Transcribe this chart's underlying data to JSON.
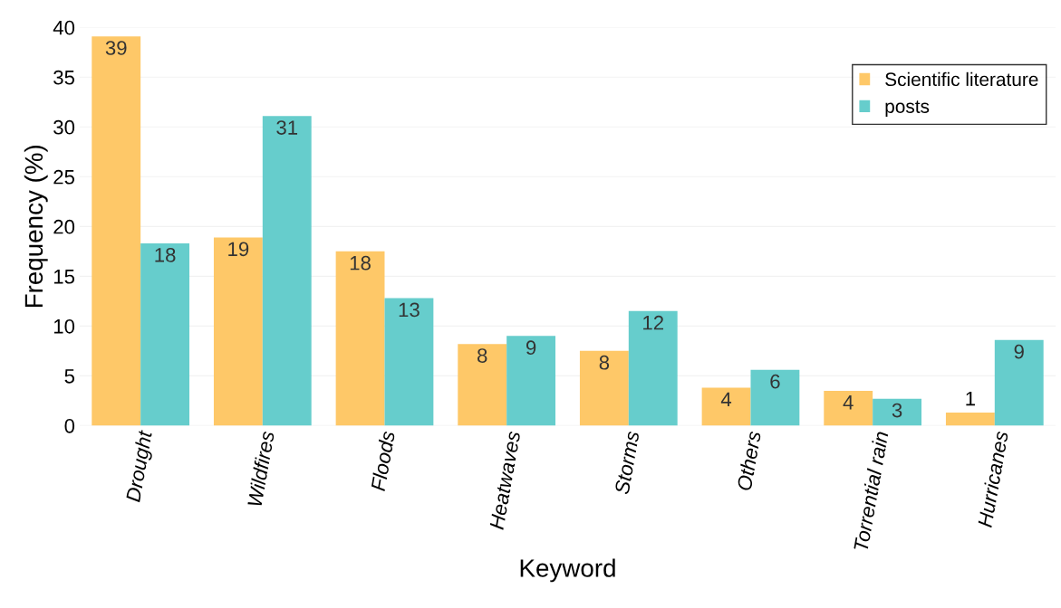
{
  "chart_data": {
    "type": "bar",
    "xlabel": "Keyword",
    "ylabel": "Frequency (%)",
    "categories": [
      "Drought",
      "Wildfires",
      "Floods",
      "Heatwaves",
      "Storms",
      "Others",
      "Torrential rain",
      "Hurricanes"
    ],
    "series": [
      {
        "name": "Scientific literature",
        "color": "#fec868",
        "values": [
          39.1,
          18.9,
          17.5,
          8.2,
          7.5,
          3.8,
          3.5,
          1.3
        ],
        "value_labels": [
          "39",
          "19",
          "18",
          "8",
          "8",
          "4",
          "4",
          "1"
        ]
      },
      {
        "name": "posts",
        "color": "#66cdcc",
        "values": [
          18.3,
          31.1,
          12.8,
          9.0,
          11.5,
          5.6,
          2.7,
          8.6
        ],
        "value_labels": [
          "18",
          "31",
          "13",
          "9",
          "12",
          "6",
          "3",
          "9"
        ]
      }
    ],
    "ylim": [
      0,
      40
    ],
    "yticks": [
      0,
      5,
      10,
      15,
      20,
      25,
      30,
      35,
      40
    ],
    "grid": "y",
    "legend": "top right"
  }
}
